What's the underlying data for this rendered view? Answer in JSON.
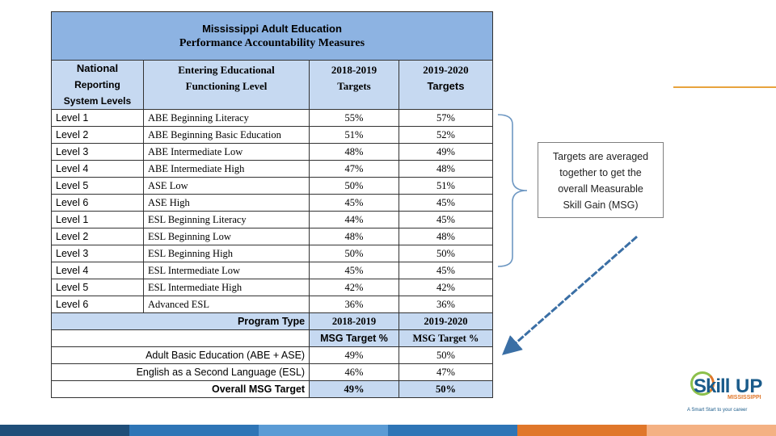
{
  "table": {
    "title_line1": "Mississippi Adult Education",
    "title_line2": "Performance Accountability Measures",
    "headers": {
      "col1": [
        "National",
        "Reporting",
        "System Levels"
      ],
      "col2": [
        "Entering Educational",
        "Functioning Level"
      ],
      "col3": [
        "2018-2019",
        "Targets"
      ],
      "col4": [
        "2019-2020",
        "Targets"
      ]
    },
    "rows": [
      {
        "level": "Level 1",
        "name": "ABE Beginning Literacy",
        "t2018": "55%",
        "t2019": "57%"
      },
      {
        "level": "Level 2",
        "name": "ABE Beginning Basic Education",
        "t2018": "51%",
        "t2019": "52%"
      },
      {
        "level": "Level 3",
        "name": "ABE Intermediate Low",
        "t2018": "48%",
        "t2019": "49%"
      },
      {
        "level": "Level 4",
        "name": "ABE Intermediate High",
        "t2018": "47%",
        "t2019": "48%"
      },
      {
        "level": "Level 5",
        "name": "ASE Low",
        "t2018": "50%",
        "t2019": "51%"
      },
      {
        "level": "Level 6",
        "name": "ASE High",
        "t2018": "45%",
        "t2019": "45%"
      },
      {
        "level": "Level 1",
        "name": "ESL Beginning Literacy",
        "t2018": "44%",
        "t2019": "45%"
      },
      {
        "level": "Level 2",
        "name": "ESL Beginning Low",
        "t2018": "48%",
        "t2019": "48%"
      },
      {
        "level": "Level 3",
        "name": "ESL Beginning High",
        "t2018": "50%",
        "t2019": "50%"
      },
      {
        "level": "Level 4",
        "name": "ESL Intermediate Low",
        "t2018": "45%",
        "t2019": "45%"
      },
      {
        "level": "Level 5",
        "name": "ESL Intermediate High",
        "t2018": "42%",
        "t2019": "42%"
      },
      {
        "level": "Level 6",
        "name": "Advanced ESL",
        "t2018": "36%",
        "t2019": "36%"
      }
    ],
    "program": {
      "label": "Program Type",
      "y2018": "2018-2019",
      "y2019": "2019-2020",
      "msg2018": "MSG Target %",
      "msg2019": "MSG Target %"
    },
    "program_rows": [
      {
        "name": "Adult Basic Education (ABE + ASE)",
        "t2018": "49%",
        "t2019": "50%"
      },
      {
        "name": "English as a Second Language (ESL)",
        "t2018": "46%",
        "t2019": "47%"
      },
      {
        "name": "Overall MSG Target",
        "t2018": "49%",
        "t2019": "50%"
      }
    ]
  },
  "callout": {
    "lines": [
      "Targets are averaged",
      "together to get the",
      "overall Measurable",
      "Skill Gain (MSG)"
    ]
  },
  "logo": {
    "word1": "Skill",
    "word2": "UP",
    "state": "MISSISSIPPI",
    "tagline": "A Smart Start to your career"
  },
  "colors": {
    "title_fill": "#8db3e2",
    "header_fill": "#c6d9f1",
    "accent_orange": "#e8a33d",
    "arrow_blue": "#3a6fa5",
    "bar_segments": [
      "#1f4e79",
      "#2e75b6",
      "#5b9bd5",
      "#e0772a",
      "#f4b183"
    ]
  }
}
